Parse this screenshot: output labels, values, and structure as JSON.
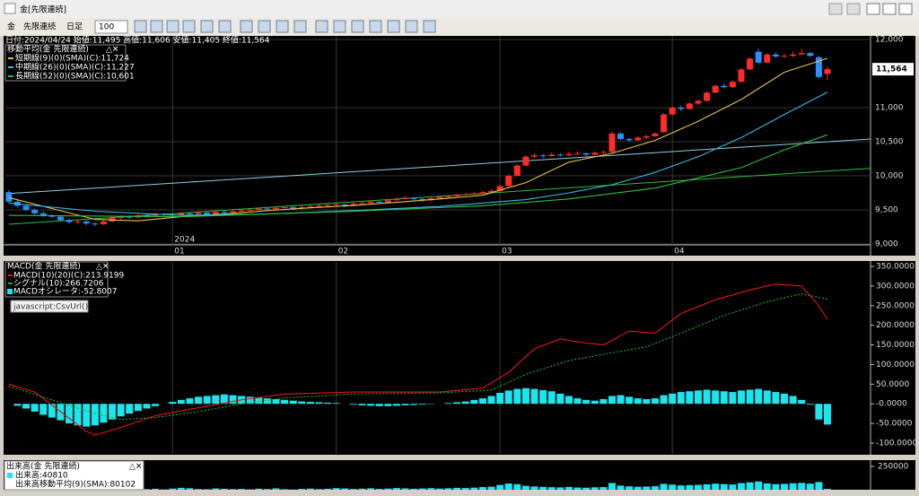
{
  "window": {
    "title": "金[先限連続]"
  },
  "toolbar": {
    "symbol": "金",
    "contract": "先限連続",
    "period": "日足",
    "count": "100"
  },
  "panel_controls": "△✕",
  "xlim": [
    -0.4,
    100
  ],
  "price_panel": {
    "type": "candlestick",
    "header": "日付:2024/04/24 始値:11,495 高値:11,606 安値:11,405 終値:11,564",
    "legend_title": "移動平均(金 先限連続)",
    "ylim": [
      9000,
      12000
    ],
    "yticks": [
      {
        "value": 9000,
        "label": "9,000"
      },
      {
        "value": 9500,
        "label": "9,500"
      },
      {
        "value": 10000,
        "label": "10,000"
      },
      {
        "value": 10500,
        "label": "10,500"
      },
      {
        "value": 11000,
        "label": "11,000"
      },
      {
        "value": 12000,
        "label": "12,000"
      }
    ],
    "last_price": {
      "value": 11564,
      "label": "11,564"
    },
    "year_label": {
      "x": 19,
      "label": "2024"
    },
    "months": {
      "x": [
        19,
        38,
        57,
        77
      ],
      "labels": [
        "01",
        "02",
        "03",
        "04"
      ]
    },
    "up_color": "#ff2a2a",
    "down_color": "#2b8fff",
    "ohlc": [
      [
        9760,
        9790,
        9600,
        9620
      ],
      [
        9620,
        9650,
        9540,
        9560
      ],
      [
        9560,
        9580,
        9480,
        9500
      ],
      [
        9500,
        9520,
        9430,
        9450
      ],
      [
        9450,
        9480,
        9400,
        9420
      ],
      [
        9420,
        9440,
        9380,
        9400
      ],
      [
        9400,
        9420,
        9330,
        9350
      ],
      [
        9350,
        9370,
        9300,
        9320
      ],
      [
        9320,
        9360,
        9300,
        9330
      ],
      [
        9330,
        9350,
        9280,
        9300
      ],
      [
        9300,
        9320,
        9260,
        9290
      ],
      [
        9290,
        9350,
        9280,
        9330
      ],
      [
        9330,
        9400,
        9320,
        9380
      ],
      [
        9380,
        9420,
        9360,
        9400
      ],
      [
        9400,
        9420,
        9370,
        9390
      ],
      [
        9390,
        9440,
        9380,
        9420
      ],
      [
        9420,
        9440,
        9390,
        9410
      ],
      [
        9410,
        9460,
        9400,
        9440
      ],
      [
        9440,
        9460,
        9410,
        9430
      ],
      [
        9430,
        9450,
        9400,
        9420
      ],
      [
        9420,
        9470,
        9410,
        9450
      ],
      [
        9450,
        9470,
        9420,
        9440
      ],
      [
        9440,
        9480,
        9430,
        9460
      ],
      [
        9460,
        9470,
        9410,
        9430
      ],
      [
        9430,
        9490,
        9420,
        9470
      ],
      [
        9470,
        9490,
        9440,
        9460
      ],
      [
        9460,
        9500,
        9450,
        9480
      ],
      [
        9480,
        9510,
        9470,
        9490
      ],
      [
        9490,
        9520,
        9480,
        9500
      ],
      [
        9500,
        9540,
        9490,
        9520
      ],
      [
        9520,
        9530,
        9490,
        9510
      ],
      [
        9510,
        9550,
        9500,
        9530
      ],
      [
        9530,
        9560,
        9520,
        9540
      ],
      [
        9540,
        9550,
        9500,
        9520
      ],
      [
        9520,
        9560,
        9510,
        9540
      ],
      [
        9540,
        9570,
        9530,
        9550
      ],
      [
        9550,
        9580,
        9540,
        9560
      ],
      [
        9560,
        9590,
        9550,
        9570
      ],
      [
        9570,
        9600,
        9560,
        9580
      ],
      [
        9580,
        9590,
        9540,
        9560
      ],
      [
        9560,
        9610,
        9550,
        9590
      ],
      [
        9590,
        9620,
        9580,
        9600
      ],
      [
        9600,
        9640,
        9590,
        9620
      ],
      [
        9620,
        9630,
        9590,
        9610
      ],
      [
        9610,
        9660,
        9600,
        9640
      ],
      [
        9640,
        9680,
        9630,
        9660
      ],
      [
        9660,
        9700,
        9650,
        9680
      ],
      [
        9680,
        9690,
        9640,
        9660
      ],
      [
        9660,
        9670,
        9620,
        9640
      ],
      [
        9640,
        9690,
        9630,
        9670
      ],
      [
        9670,
        9710,
        9660,
        9690
      ],
      [
        9690,
        9720,
        9680,
        9700
      ],
      [
        9700,
        9740,
        9690,
        9720
      ],
      [
        9720,
        9750,
        9710,
        9730
      ],
      [
        9730,
        9760,
        9720,
        9740
      ],
      [
        9740,
        9780,
        9730,
        9760
      ],
      [
        9760,
        9800,
        9750,
        9780
      ],
      [
        9780,
        9870,
        9770,
        9850
      ],
      [
        9850,
        10020,
        9840,
        10000
      ],
      [
        10000,
        10170,
        9990,
        10150
      ],
      [
        10150,
        10300,
        10140,
        10280
      ],
      [
        10280,
        10330,
        10260,
        10300
      ],
      [
        10300,
        10320,
        10260,
        10290
      ],
      [
        10290,
        10340,
        10280,
        10310
      ],
      [
        10310,
        10330,
        10280,
        10300
      ],
      [
        10300,
        10350,
        10290,
        10320
      ],
      [
        10320,
        10360,
        10310,
        10330
      ],
      [
        10330,
        10340,
        10290,
        10310
      ],
      [
        10310,
        10360,
        10300,
        10340
      ],
      [
        10340,
        10370,
        10320,
        10350
      ],
      [
        10350,
        10650,
        10340,
        10620
      ],
      [
        10620,
        10640,
        10520,
        10540
      ],
      [
        10540,
        10560,
        10490,
        10520
      ],
      [
        10520,
        10580,
        10510,
        10560
      ],
      [
        10560,
        10600,
        10540,
        10580
      ],
      [
        10580,
        10640,
        10570,
        10620
      ],
      [
        10640,
        10920,
        10630,
        10900
      ],
      [
        10900,
        11020,
        10880,
        11000
      ],
      [
        11000,
        11030,
        10950,
        10980
      ],
      [
        10980,
        11080,
        10970,
        11060
      ],
      [
        11060,
        11120,
        11040,
        11100
      ],
      [
        11100,
        11240,
        11090,
        11220
      ],
      [
        11220,
        11340,
        11210,
        11320
      ],
      [
        11320,
        11350,
        11280,
        11300
      ],
      [
        11300,
        11400,
        11290,
        11380
      ],
      [
        11380,
        11580,
        11370,
        11560
      ],
      [
        11560,
        11740,
        11550,
        11720
      ],
      [
        11820,
        11860,
        11640,
        11660
      ],
      [
        11660,
        11800,
        11650,
        11780
      ],
      [
        11780,
        11810,
        11730,
        11750
      ],
      [
        11750,
        11790,
        11730,
        11760
      ],
      [
        11760,
        11820,
        11740,
        11780
      ],
      [
        11780,
        11860,
        11770,
        11800
      ],
      [
        11800,
        11820,
        11740,
        11760
      ],
      [
        11740,
        11760,
        11420,
        11450
      ],
      [
        11495,
        11606,
        11405,
        11564
      ]
    ],
    "series": [
      {
        "name": "短期線(9)(0)(SMA)(C):11,724",
        "color": "#e8c34a",
        "x": [
          0,
          5,
          10,
          15,
          20,
          25,
          30,
          35,
          40,
          45,
          50,
          55,
          60,
          65,
          70,
          75,
          80,
          85,
          90,
          95
        ],
        "values": [
          9680,
          9520,
          9360,
          9340,
          9400,
          9440,
          9490,
          9530,
          9565,
          9610,
          9660,
          9715,
          9900,
          10200,
          10330,
          10520,
          10800,
          11120,
          11520,
          11724
        ]
      },
      {
        "name": "中期線(26)(0)(SMA)(C):11,227",
        "color": "#3ab8e0",
        "x": [
          0,
          10,
          20,
          30,
          40,
          50,
          60,
          65,
          70,
          75,
          80,
          85,
          90,
          95
        ],
        "values": [
          9600,
          9480,
          9420,
          9440,
          9490,
          9550,
          9650,
          9750,
          9870,
          10050,
          10280,
          10560,
          10900,
          11227
        ]
      },
      {
        "name": "長期線(52)(0)(SMA)(C):10,601",
        "color": "#2fbf3f",
        "x": [
          0,
          20,
          40,
          55,
          65,
          75,
          85,
          90,
          95
        ],
        "values": [
          9420,
          9400,
          9480,
          9560,
          9660,
          9820,
          10120,
          10380,
          10601
        ]
      }
    ],
    "trend_lines": [
      {
        "color": "#8fd0e8",
        "x": [
          0,
          100
        ],
        "values": [
          9740,
          10540
        ]
      },
      {
        "color": "#2fbf3f",
        "x": [
          0,
          100
        ],
        "values": [
          9290,
          10110
        ]
      }
    ]
  },
  "macd_panel": {
    "type": "macd",
    "legend_title": "MACD(金 先限連続)",
    "tooltip": "javascript:CsvUrl();",
    "ylim": [
      -100,
      350
    ],
    "yticks": [
      {
        "value": 350,
        "label": "350.0000"
      },
      {
        "value": 300,
        "label": "300.0000"
      },
      {
        "value": 250,
        "label": "250.0000"
      },
      {
        "value": 200,
        "label": "200.0000"
      },
      {
        "value": 150,
        "label": "150.0000"
      },
      {
        "value": 100,
        "label": "100.0000"
      },
      {
        "value": 50,
        "label": "50.0000"
      },
      {
        "value": 0,
        "label": "-0.0000"
      },
      {
        "value": -50,
        "label": "-50.0000"
      },
      {
        "value": -100,
        "label": "-100.0000"
      }
    ],
    "series": [
      {
        "name": "MACD(10)(20)(C):213.9199",
        "color": "#e01818",
        "x": [
          0,
          3,
          6,
          9,
          10,
          13,
          17,
          22,
          27,
          32,
          40,
          50,
          55,
          58,
          61,
          64,
          67,
          69,
          72,
          75,
          78,
          82,
          86,
          89,
          92,
          94,
          95
        ],
        "values": [
          50,
          30,
          -20,
          -70,
          -80,
          -60,
          -30,
          -10,
          10,
          25,
          30,
          30,
          40,
          80,
          140,
          165,
          155,
          150,
          185,
          180,
          230,
          265,
          290,
          305,
          300,
          250,
          213.9199
        ]
      },
      {
        "name": "シグナル(10):266.7206",
        "color": "#22b022",
        "dashed": true,
        "x": [
          0,
          5,
          10,
          13,
          17,
          22,
          27,
          32,
          40,
          50,
          56,
          60,
          65,
          70,
          74,
          78,
          83,
          88,
          92,
          95
        ],
        "values": [
          45,
          10,
          -25,
          -40,
          -35,
          -20,
          0,
          15,
          25,
          28,
          35,
          75,
          110,
          130,
          145,
          180,
          225,
          260,
          280,
          266.7206
        ]
      }
    ],
    "oscillator": {
      "name": "MACDオシレータ:-52.8007",
      "color": "#19e6ef",
      "values": [
        0,
        -5,
        -12,
        -20,
        -28,
        -35,
        -42,
        -50,
        -55,
        -58,
        -55,
        -48,
        -40,
        -32,
        -25,
        -18,
        -12,
        -6,
        0,
        5,
        10,
        14,
        18,
        20,
        22,
        24,
        22,
        20,
        18,
        16,
        14,
        12,
        10,
        8,
        6,
        5,
        4,
        3,
        2,
        0,
        -2,
        -4,
        -5,
        -6,
        -6,
        -5,
        -4,
        -3,
        -2,
        -1,
        0,
        2,
        4,
        6,
        10,
        14,
        20,
        28,
        34,
        38,
        40,
        38,
        35,
        32,
        26,
        20,
        14,
        10,
        8,
        12,
        20,
        22,
        18,
        14,
        12,
        14,
        22,
        26,
        30,
        32,
        34,
        36,
        34,
        32,
        30,
        34,
        36,
        38,
        34,
        30,
        26,
        20,
        10,
        -2,
        -40,
        -52.8007
      ]
    }
  },
  "volume_panel": {
    "type": "bar",
    "legend_title": "出来高(金 先限連続)",
    "ma_name": "出来高移動平均(9)(SMA):80102",
    "ylim": [
      0,
      300000
    ],
    "yticks": [
      250000
    ],
    "series": [
      {
        "name": "出来高:40810",
        "color": "#19e6ef",
        "values": [
          62000,
          58000,
          71000,
          54000,
          49000,
          66000,
          73000,
          60000,
          52000,
          48000,
          55000,
          61000,
          47000,
          43000,
          50000,
          45000,
          39000,
          42000,
          36000,
          44000,
          51000,
          47000,
          40000,
          38000,
          45000,
          42000,
          39000,
          41000,
          37000,
          43000,
          40000,
          46000,
          38000,
          35000,
          41000,
          44000,
          39000,
          42000,
          48000,
          45000,
          40000,
          43000,
          47000,
          41000,
          44000,
          49000,
          46000,
          42000,
          45000,
          48000,
          44000,
          47000,
          51000,
          49000,
          53000,
          58000,
          62000,
          78000,
          91000,
          85000,
          70000,
          64000,
          60000,
          57000,
          55000,
          59000,
          54000,
          52000,
          56000,
          58000,
          96000,
          72000,
          65000,
          61000,
          63000,
          66000,
          88000,
          81000,
          74000,
          76000,
          79000,
          84000,
          90000,
          86000,
          82000,
          95000,
          102000,
          110000,
          92000,
          85000,
          88000,
          93000,
          97000,
          90000,
          105000,
          40810
        ]
      }
    ]
  }
}
